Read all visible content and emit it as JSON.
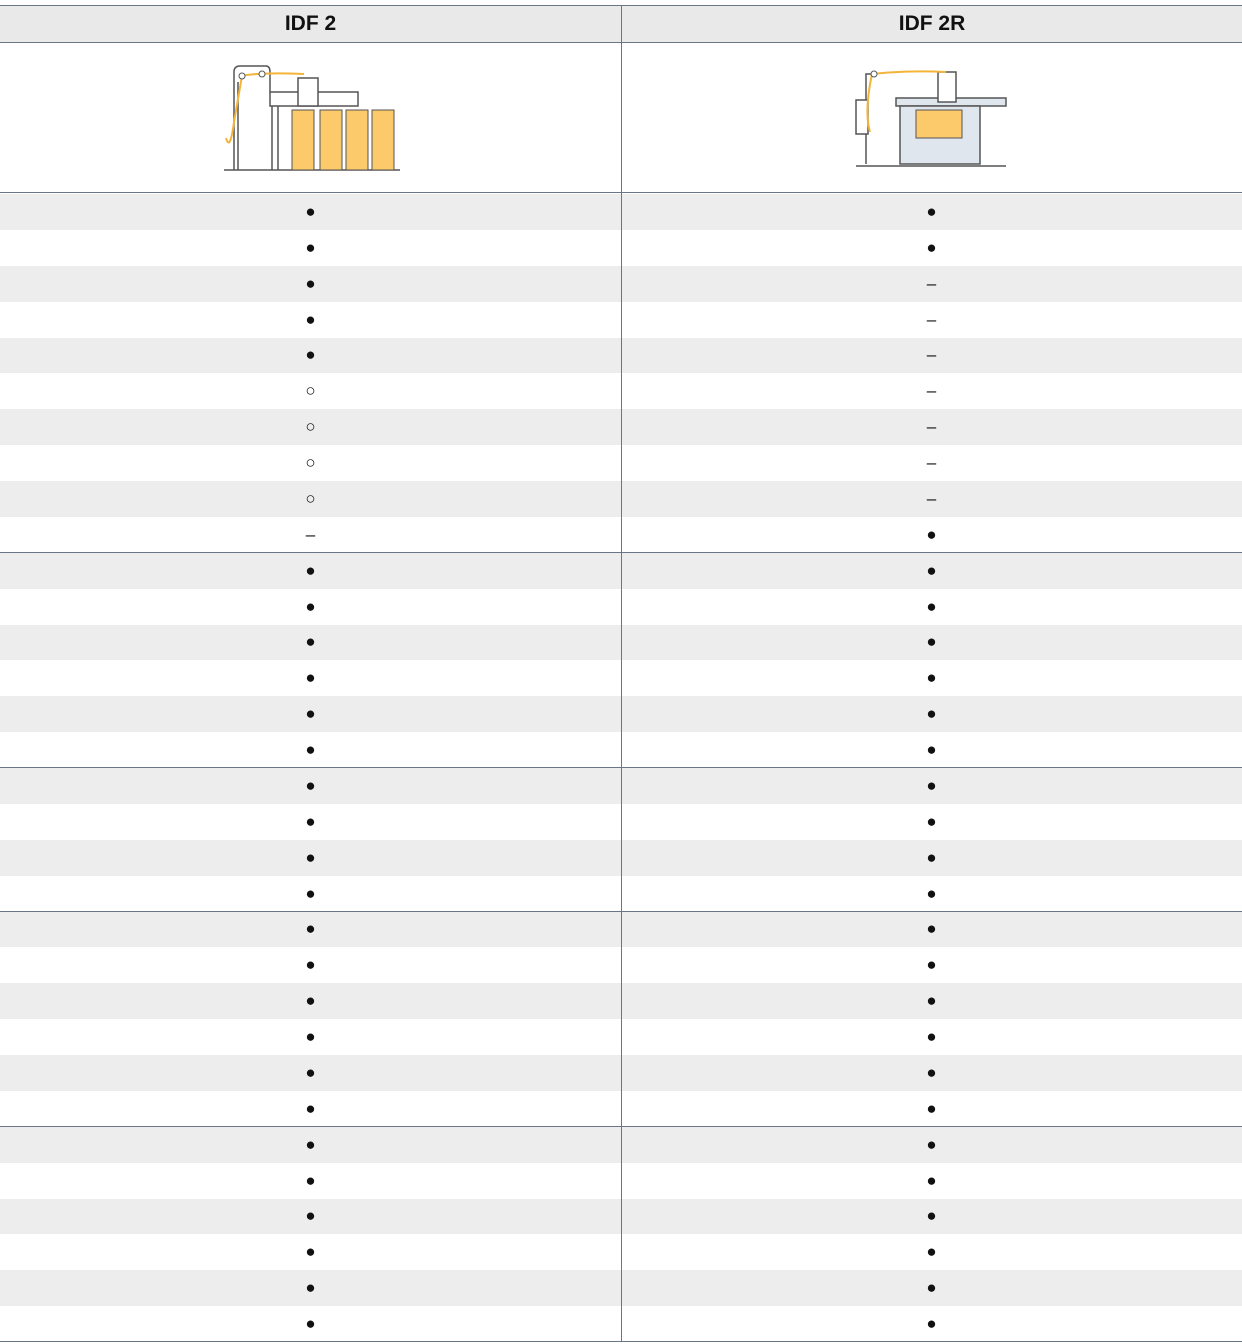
{
  "header": {
    "columns": [
      "IDF 2",
      "IDF 2R"
    ]
  },
  "groups": [
    [
      [
        "●",
        "●"
      ],
      [
        "●",
        "●"
      ],
      [
        "●",
        "–"
      ],
      [
        "●",
        "–"
      ],
      [
        "●",
        "–"
      ],
      [
        "○",
        "–"
      ],
      [
        "○",
        "–"
      ],
      [
        "○",
        "–"
      ],
      [
        "○",
        "–"
      ],
      [
        "–",
        "●"
      ]
    ],
    [
      [
        "●",
        "●"
      ],
      [
        "●",
        "●"
      ],
      [
        "●",
        "●"
      ],
      [
        "●",
        "●"
      ],
      [
        "●",
        "●"
      ],
      [
        "●",
        "●"
      ]
    ],
    [
      [
        "●",
        "●"
      ],
      [
        "●",
        "●"
      ],
      [
        "●",
        "●"
      ],
      [
        "●",
        "●"
      ]
    ],
    [
      [
        "●",
        "●"
      ],
      [
        "●",
        "●"
      ],
      [
        "●",
        "●"
      ],
      [
        "●",
        "●"
      ],
      [
        "●",
        "●"
      ],
      [
        "●",
        "●"
      ]
    ],
    [
      [
        "●",
        "●"
      ],
      [
        "●",
        "●"
      ],
      [
        "●",
        "●"
      ],
      [
        "●",
        "●"
      ],
      [
        "●",
        "●"
      ],
      [
        "●",
        "●"
      ]
    ]
  ]
}
